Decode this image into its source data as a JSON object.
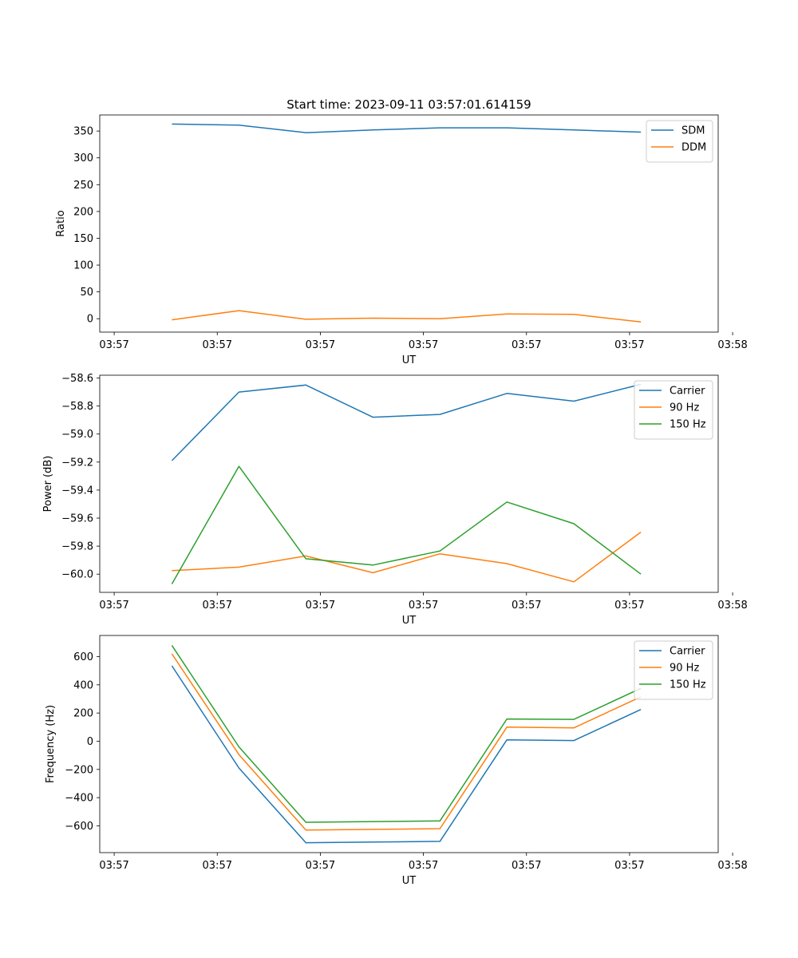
{
  "chart_data": [
    {
      "type": "line",
      "title": "Start time: 2023-09-11 03:57:01.614159",
      "xlabel": "UT",
      "ylabel": "Ratio",
      "x": [
        0.7,
        1.35,
        2.0,
        2.65,
        3.3,
        3.95,
        4.6,
        5.25
      ],
      "xlim": [
        0,
        6
      ],
      "xtick_values": [
        0.14,
        1.14,
        2.14,
        3.14,
        4.14,
        5.14,
        6.14
      ],
      "xtick_labels": [
        "03:57",
        "03:57",
        "03:57",
        "03:57",
        "03:57",
        "03:57",
        "03:58"
      ],
      "ylim": [
        -25,
        380
      ],
      "yticks": [
        0,
        50,
        100,
        150,
        200,
        250,
        300,
        350
      ],
      "legend_position": "top-right",
      "series": [
        {
          "name": "SDM",
          "color": "#1f77b4",
          "values": [
            363,
            361,
            347,
            352,
            356,
            356,
            352,
            348
          ]
        },
        {
          "name": "DDM",
          "color": "#ff7f0e",
          "values": [
            -2,
            15,
            -1,
            1,
            0,
            9,
            8,
            -6
          ]
        }
      ]
    },
    {
      "type": "line",
      "title": "",
      "xlabel": "UT",
      "ylabel": "Power (dB)",
      "x": [
        0.7,
        1.35,
        2.0,
        2.65,
        3.3,
        3.95,
        4.6,
        5.25
      ],
      "xlim": [
        0,
        6
      ],
      "xtick_values": [
        0.14,
        1.14,
        2.14,
        3.14,
        4.14,
        5.14,
        6.14
      ],
      "xtick_labels": [
        "03:57",
        "03:57",
        "03:57",
        "03:57",
        "03:57",
        "03:57",
        "03:58"
      ],
      "ylim": [
        -60.13,
        -58.58
      ],
      "yticks": [
        -60.0,
        -59.8,
        -59.6,
        -59.4,
        -59.2,
        -59.0,
        -58.8,
        -58.6
      ],
      "ytick_labels": [
        "−60.0",
        "−59.8",
        "−59.6",
        "−59.4",
        "−59.2",
        "−59.0",
        "−58.8",
        "−58.6"
      ],
      "legend_position": "top-right",
      "series": [
        {
          "name": "Carrier",
          "color": "#1f77b4",
          "values": [
            -59.19,
            -58.7,
            -58.65,
            -58.88,
            -58.86,
            -58.71,
            -58.765,
            -58.645
          ]
        },
        {
          "name": "90 Hz",
          "color": "#ff7f0e",
          "values": [
            -59.975,
            -59.95,
            -59.87,
            -59.99,
            -59.855,
            -59.925,
            -60.055,
            -59.7
          ]
        },
        {
          "name": "150 Hz",
          "color": "#2ca02c",
          "values": [
            -60.07,
            -59.23,
            -59.89,
            -59.935,
            -59.835,
            -59.485,
            -59.64,
            -60.0
          ]
        }
      ]
    },
    {
      "type": "line",
      "title": "",
      "xlabel": "UT",
      "ylabel": "Frequency (Hz)",
      "x": [
        0.7,
        1.35,
        2.0,
        2.65,
        3.3,
        3.95,
        4.6,
        5.25
      ],
      "xlim": [
        0,
        6
      ],
      "xtick_values": [
        0.14,
        1.14,
        2.14,
        3.14,
        4.14,
        5.14,
        6.14
      ],
      "xtick_labels": [
        "03:57",
        "03:57",
        "03:57",
        "03:57",
        "03:57",
        "03:57",
        "03:58"
      ],
      "ylim": [
        -790,
        750
      ],
      "yticks": [
        -600,
        -400,
        -200,
        0,
        200,
        400,
        600
      ],
      "ytick_labels": [
        "−600",
        "−400",
        "−200",
        "0",
        "200",
        "400",
        "600"
      ],
      "legend_position": "top-right",
      "series": [
        {
          "name": "Carrier",
          "color": "#1f77b4",
          "values": [
            535,
            -190,
            -720,
            -715,
            -710,
            10,
            5,
            225
          ]
        },
        {
          "name": "90 Hz",
          "color": "#ff7f0e",
          "values": [
            620,
            -95,
            -630,
            -625,
            -620,
            100,
            95,
            315
          ]
        },
        {
          "name": "150 Hz",
          "color": "#2ca02c",
          "values": [
            680,
            -40,
            -575,
            -570,
            -565,
            158,
            155,
            375
          ]
        }
      ]
    }
  ]
}
